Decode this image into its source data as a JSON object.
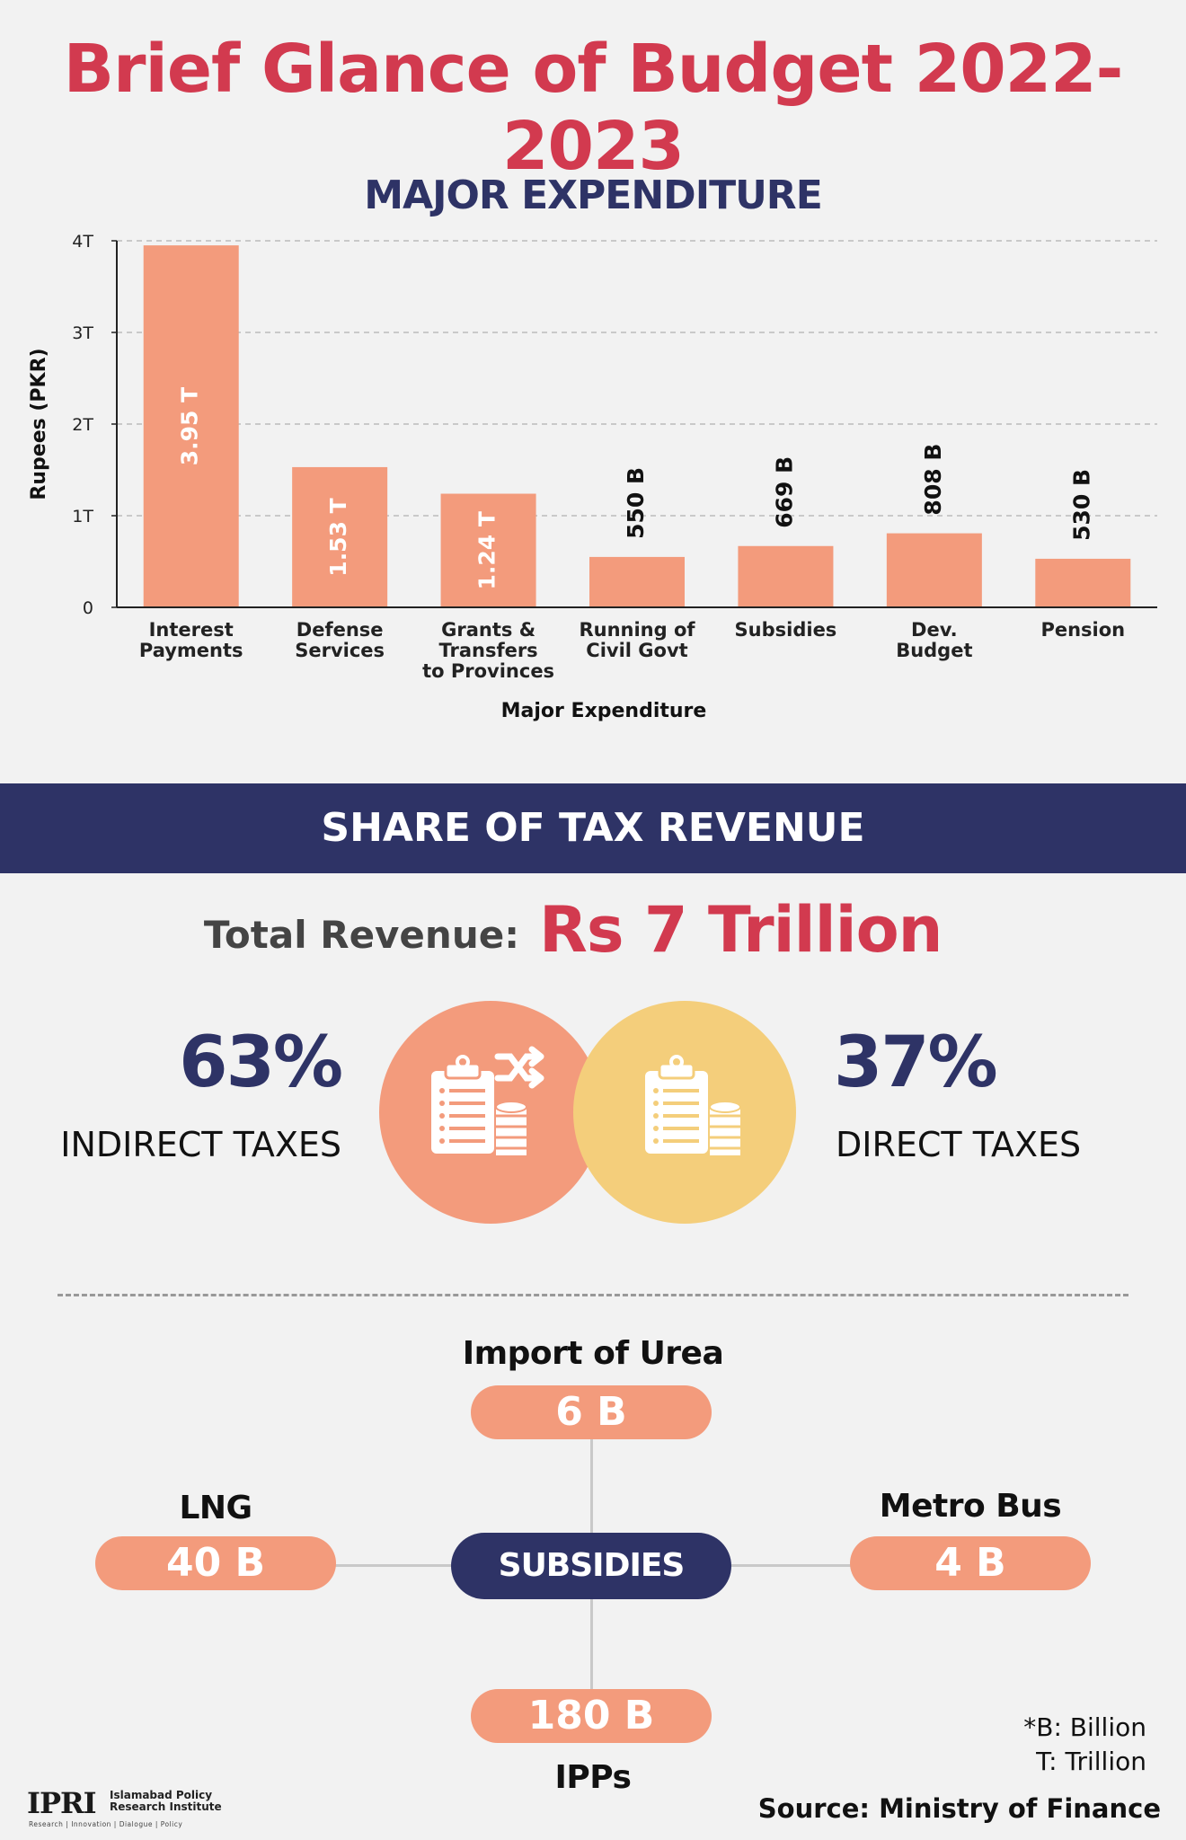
{
  "header": {
    "title": "Brief Glance of Budget 2022-2023"
  },
  "chart_data": {
    "type": "bar",
    "title": "MAJOR EXPENDITURE",
    "xlabel": "Major Expenditure",
    "ylabel": "Rupees (PKR)",
    "ylim": [
      0,
      4
    ],
    "yunit": "trillion PKR",
    "yticks": [
      0,
      1,
      2,
      3,
      4
    ],
    "ytick_labels": [
      "0",
      "1T",
      "2T",
      "3T",
      "4T"
    ],
    "grid": true,
    "categories": [
      [
        "Interest",
        "Payments"
      ],
      [
        "Defense",
        "Services"
      ],
      [
        "Grants &",
        "Transfers",
        "to Provinces"
      ],
      [
        "Running of",
        "Civil Govt"
      ],
      [
        "Subsidies"
      ],
      [
        "Dev.",
        "Budget"
      ],
      [
        "Pension"
      ]
    ],
    "values": [
      3.95,
      1.53,
      1.24,
      0.55,
      0.669,
      0.808,
      0.53
    ],
    "value_labels": [
      "3.95 T",
      "1.53 T",
      "1.24 T",
      "550 B",
      "669 B",
      "808 B",
      "530 B"
    ]
  },
  "tax": {
    "banner": "SHARE OF TAX REVENUE",
    "total_label": "Total Revenue:",
    "total_value": "Rs 7 Trillion",
    "indirect": {
      "percent": "63%",
      "label": "INDIRECT TAXES"
    },
    "direct": {
      "percent": "37%",
      "label": "DIRECT TAXES"
    }
  },
  "subsidies": {
    "hub_label": "SUBSIDIES",
    "urea": {
      "label": "Import of Urea",
      "value": "6 B"
    },
    "lng": {
      "label": "LNG",
      "value": "40 B"
    },
    "metro": {
      "label": "Metro Bus",
      "value": "4 B"
    },
    "ipps": {
      "label": "IPPs",
      "value": "180 B"
    }
  },
  "legend": {
    "billion": "*B: Billion",
    "trillion": "T: Trillion"
  },
  "source": "Source: Ministry of Finance",
  "logo": {
    "mark": "IPRI",
    "name_line1": "Islamabad Policy",
    "name_line2": "Research Institute",
    "tagline": "Research | Innovation | Dialogue | Policy"
  },
  "colors": {
    "accent_red": "#d23a4f",
    "navy": "#2e3366",
    "bar": "#f39b7c",
    "direct": "#f4ce7b"
  }
}
